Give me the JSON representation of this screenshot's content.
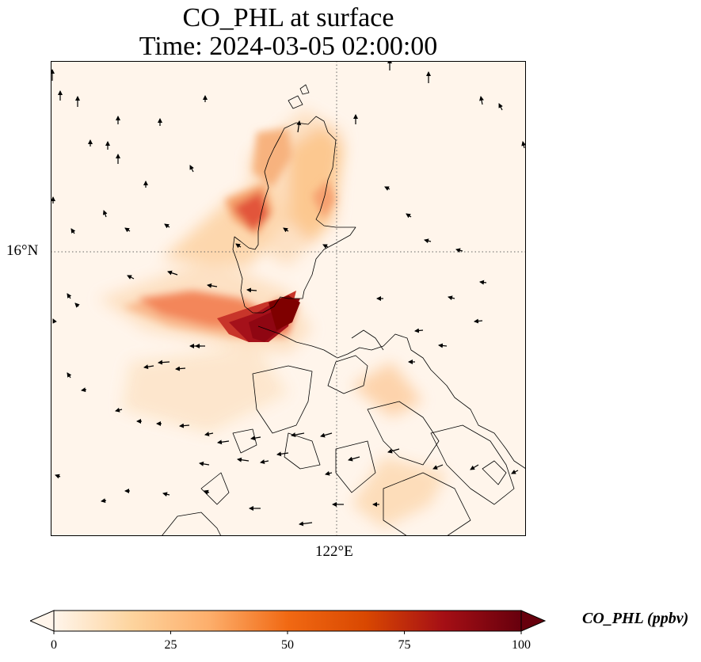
{
  "title": {
    "line1": "CO_PHL at surface",
    "line2": "Time: 2024-03-05 02:00:00"
  },
  "axes": {
    "lat_label": "16°N",
    "lon_label": "122°E"
  },
  "colorbar": {
    "label": "CO_PHL (ppbv)",
    "ticks": [
      "0",
      "25",
      "50",
      "75",
      "100"
    ],
    "min": 0,
    "max": 100,
    "extend": "both",
    "colormap": [
      "#fff5eb",
      "#fdd49e",
      "#fdae6b",
      "#f16913",
      "#d94801",
      "#a50f15",
      "#67000d"
    ]
  },
  "field": {
    "description_hidden": false,
    "plume_color_max": "#7f0000",
    "background_color": "#fff5eb"
  },
  "gridlines": {
    "style": "dotted",
    "color": "#666666"
  }
}
